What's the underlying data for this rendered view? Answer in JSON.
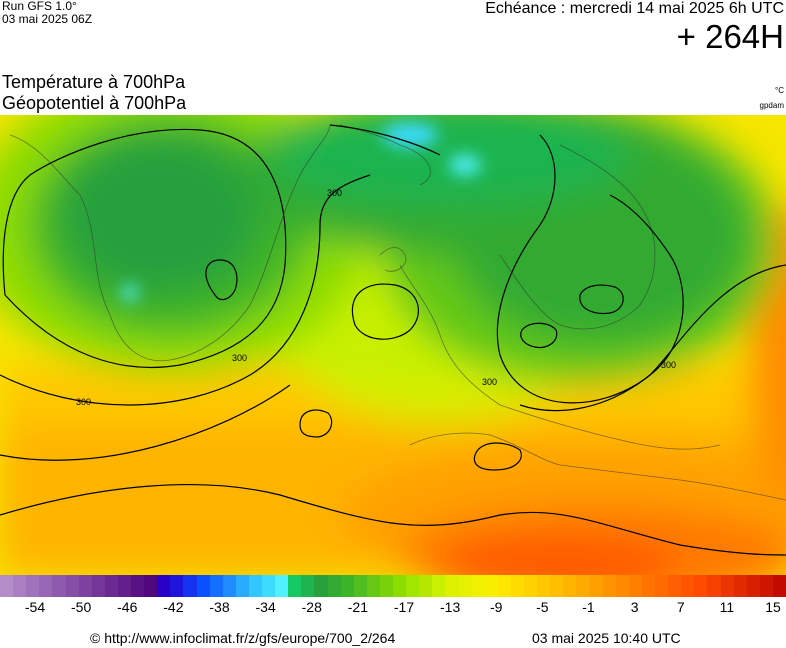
{
  "header": {
    "run_model": "Run GFS 1.0°",
    "run_time": "03 mai 2025 06Z",
    "valid_time": "Echéance : mercredi 14 mai 2025 6h UTC",
    "lead_time": "+ 264H"
  },
  "titles": {
    "temperature": "Température à 700hPa",
    "geopotential": "Géopotentiel à 700hPa",
    "unit_temp": "°C",
    "unit_geo": "gpdam"
  },
  "map": {
    "contour_value": "300",
    "contour_labels": [
      "300",
      "300",
      "300",
      "300",
      "300"
    ]
  },
  "scale": {
    "colors": [
      "#b48cc8",
      "#aa7fc2",
      "#a072bb",
      "#9766b4",
      "#8e5aad",
      "#864ea6",
      "#7d429f",
      "#743699",
      "#6b2a92",
      "#621e8b",
      "#591284",
      "#50077d",
      "#2a00c8",
      "#1e14dc",
      "#1432f0",
      "#0a50ff",
      "#146eff",
      "#1e8cff",
      "#28aaff",
      "#32c8ff",
      "#3cdcff",
      "#50f0ff",
      "#14c864",
      "#1eb450",
      "#28a03c",
      "#32aa32",
      "#3cb428",
      "#50be1e",
      "#64c814",
      "#78d20a",
      "#8cdc00",
      "#a0e600",
      "#b4e600",
      "#c8f000",
      "#dcf000",
      "#e6f000",
      "#f0f000",
      "#f8ee00",
      "#ffe600",
      "#ffdc00",
      "#ffd200",
      "#ffc800",
      "#ffbe00",
      "#ffb400",
      "#ffaa00",
      "#ff9f00",
      "#ff9400",
      "#ff8a00",
      "#ff7f00",
      "#ff7400",
      "#ff6a00",
      "#ff5f00",
      "#ff5500",
      "#ff4a00",
      "#f54000",
      "#eb3500",
      "#e12a00",
      "#d72000",
      "#cd1500",
      "#c30a00"
    ],
    "ticks": [
      "-54",
      "-50",
      "-46",
      "-42",
      "-38",
      "-34",
      "-28",
      "-21",
      "-17",
      "-13",
      "-9",
      "-5",
      "-1",
      "3",
      "7",
      "11",
      "15"
    ]
  },
  "footer": {
    "source": "© http://www.infoclimat.fr/z/gfs/europe/700_2/264",
    "generated": "03 mai 2025 10:40 UTC"
  }
}
